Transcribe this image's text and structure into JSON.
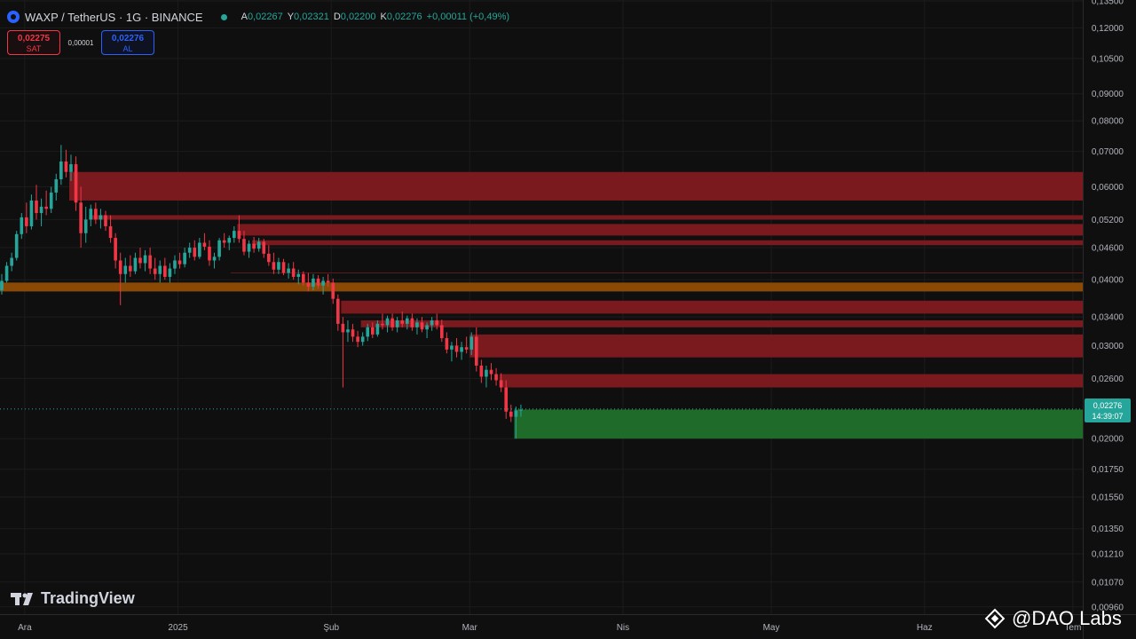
{
  "header": {
    "title": "WAXP / TetherUS · 1G · BINANCE",
    "ohlc": [
      {
        "k": "A",
        "v": "0,02267"
      },
      {
        "k": "Y",
        "v": "0,02321"
      },
      {
        "k": "D",
        "v": "0,02200"
      },
      {
        "k": "K",
        "v": "0,02276"
      }
    ],
    "change": "+0,00011 (+0,49%)"
  },
  "trade": {
    "sell_price": "0,02275",
    "sell_label": "SAT",
    "spread": "0,00001",
    "buy_price": "0,02276",
    "buy_label": "AL"
  },
  "last_price": {
    "price": "0,02276",
    "countdown": "14:39:07"
  },
  "brand": {
    "name": "TradingView"
  },
  "watermark": {
    "text": "@DAO Labs"
  },
  "colors": {
    "background": "#0f0f0f",
    "up": "#26a69a",
    "down": "#f23645",
    "resistance_zone": "#7a1a1f",
    "support_zone": "#1f6b2a",
    "orange_zone": "#8a4a06"
  },
  "chart_data": {
    "type": "candlestick",
    "price_scale": "log",
    "ylim": [
      0.0093,
      0.1355
    ],
    "xlim": [
      "2024-11-26",
      "2025-07-03"
    ],
    "y_ticks": [
      "0,13500",
      "0,12000",
      "0,10500",
      "0,09000",
      "0,08000",
      "0,07000",
      "0,06000",
      "0,05200",
      "0,04600",
      "0,04000",
      "0,03400",
      "0,03000",
      "0,02600",
      "0,02000",
      "0,01750",
      "0,01550",
      "0,01350",
      "0,01210",
      "0,01070",
      "0,00960"
    ],
    "x_ticks": [
      {
        "label": "Ara",
        "date": "2024-12-01"
      },
      {
        "label": "2025",
        "date": "2025-01-01"
      },
      {
        "label": "Şub",
        "date": "2025-02-01"
      },
      {
        "label": "Mar",
        "date": "2025-03-01"
      },
      {
        "label": "Nis",
        "date": "2025-04-01"
      },
      {
        "label": "May",
        "date": "2025-05-01"
      },
      {
        "label": "Haz",
        "date": "2025-06-01"
      },
      {
        "label": "Tem",
        "date": "2025-07-01"
      }
    ],
    "zones": [
      {
        "kind": "resistance",
        "start": "2024-12-10",
        "low": 0.0565,
        "high": 0.064
      },
      {
        "kind": "resistance",
        "start": "2024-12-14",
        "low": 0.052,
        "high": 0.053
      },
      {
        "kind": "resistance",
        "start": "2025-01-13",
        "low": 0.0485,
        "high": 0.051
      },
      {
        "kind": "resistance",
        "start": "2025-01-16",
        "low": 0.0465,
        "high": 0.0475
      },
      {
        "kind": "orange",
        "start": "2024-11-26",
        "low": 0.038,
        "high": 0.0395
      },
      {
        "kind": "resistance",
        "start": "2025-02-03",
        "low": 0.0345,
        "high": 0.0365
      },
      {
        "kind": "resistance",
        "start": "2025-02-07",
        "low": 0.0325,
        "high": 0.0335
      },
      {
        "kind": "resistance",
        "start": "2025-03-01",
        "low": 0.0285,
        "high": 0.0315
      },
      {
        "kind": "resistance",
        "start": "2025-03-07",
        "low": 0.025,
        "high": 0.0265
      },
      {
        "kind": "support",
        "start": "2025-03-10",
        "low": 0.02,
        "high": 0.0227
      }
    ],
    "candles": [
      [
        "2024-11-26",
        0.0382,
        0.041,
        0.0375,
        0.0398
      ],
      [
        "2024-11-27",
        0.0398,
        0.0432,
        0.0395,
        0.0425
      ],
      [
        "2024-11-28",
        0.0425,
        0.045,
        0.0415,
        0.044
      ],
      [
        "2024-11-29",
        0.044,
        0.0495,
        0.0435,
        0.0488
      ],
      [
        "2024-11-30",
        0.0488,
        0.0535,
        0.0478,
        0.0525
      ],
      [
        "2024-12-01",
        0.0525,
        0.056,
        0.049,
        0.0505
      ],
      [
        "2024-12-02",
        0.0505,
        0.058,
        0.0498,
        0.0565
      ],
      [
        "2024-12-03",
        0.0565,
        0.0605,
        0.052,
        0.0535
      ],
      [
        "2024-12-04",
        0.0535,
        0.057,
        0.0505,
        0.055
      ],
      [
        "2024-12-05",
        0.055,
        0.059,
        0.053,
        0.0545
      ],
      [
        "2024-12-06",
        0.0545,
        0.06,
        0.0535,
        0.0585
      ],
      [
        "2024-12-07",
        0.0585,
        0.0635,
        0.0565,
        0.062
      ],
      [
        "2024-12-08",
        0.062,
        0.072,
        0.0605,
        0.067
      ],
      [
        "2024-12-09",
        0.067,
        0.0705,
        0.0625,
        0.064
      ],
      [
        "2024-12-10",
        0.064,
        0.069,
        0.0615,
        0.0662
      ],
      [
        "2024-12-11",
        0.0662,
        0.0685,
        0.054,
        0.056
      ],
      [
        "2024-12-12",
        0.056,
        0.06,
        0.046,
        0.049
      ],
      [
        "2024-12-13",
        0.049,
        0.055,
        0.047,
        0.052
      ],
      [
        "2024-12-14",
        0.052,
        0.0555,
        0.0505,
        0.0545
      ],
      [
        "2024-12-15",
        0.0545,
        0.056,
        0.051,
        0.052
      ],
      [
        "2024-12-16",
        0.052,
        0.0545,
        0.05,
        0.053
      ],
      [
        "2024-12-17",
        0.053,
        0.054,
        0.0495,
        0.0505
      ],
      [
        "2024-12-18",
        0.0505,
        0.053,
        0.047,
        0.048
      ],
      [
        "2024-12-19",
        0.048,
        0.049,
        0.042,
        0.0435
      ],
      [
        "2024-12-20",
        0.0435,
        0.045,
        0.0358,
        0.041
      ],
      [
        "2024-12-21",
        0.041,
        0.044,
        0.0395,
        0.0425
      ],
      [
        "2024-12-22",
        0.0425,
        0.0445,
        0.0405,
        0.0415
      ],
      [
        "2024-12-23",
        0.0415,
        0.045,
        0.041,
        0.044
      ],
      [
        "2024-12-24",
        0.044,
        0.046,
        0.042,
        0.043
      ],
      [
        "2024-12-25",
        0.043,
        0.0455,
        0.0415,
        0.0445
      ],
      [
        "2024-12-26",
        0.0445,
        0.046,
        0.041,
        0.042
      ],
      [
        "2024-12-27",
        0.042,
        0.044,
        0.04,
        0.041
      ],
      [
        "2024-12-28",
        0.041,
        0.0435,
        0.0395,
        0.0425
      ],
      [
        "2024-12-29",
        0.0425,
        0.044,
        0.04,
        0.0405
      ],
      [
        "2024-12-30",
        0.0405,
        0.043,
        0.0395,
        0.042
      ],
      [
        "2024-12-31",
        0.042,
        0.0445,
        0.041,
        0.0435
      ],
      [
        "2025-01-01",
        0.0435,
        0.045,
        0.042,
        0.0428
      ],
      [
        "2025-01-02",
        0.0428,
        0.046,
        0.0422,
        0.045
      ],
      [
        "2025-01-03",
        0.045,
        0.047,
        0.044,
        0.046
      ],
      [
        "2025-01-04",
        0.046,
        0.0475,
        0.0435,
        0.0442
      ],
      [
        "2025-01-05",
        0.0442,
        0.048,
        0.0438,
        0.047
      ],
      [
        "2025-01-06",
        0.047,
        0.049,
        0.0455,
        0.0462
      ],
      [
        "2025-01-07",
        0.0462,
        0.0475,
        0.0425,
        0.0435
      ],
      [
        "2025-01-08",
        0.0435,
        0.045,
        0.042,
        0.0442
      ],
      [
        "2025-01-09",
        0.0442,
        0.048,
        0.0435,
        0.0475
      ],
      [
        "2025-01-10",
        0.0475,
        0.049,
        0.046,
        0.047
      ],
      [
        "2025-01-11",
        0.047,
        0.0485,
        0.0455,
        0.048
      ],
      [
        "2025-01-12",
        0.048,
        0.0505,
        0.047,
        0.0495
      ],
      [
        "2025-01-13",
        0.0495,
        0.053,
        0.047,
        0.0478
      ],
      [
        "2025-01-14",
        0.0478,
        0.0495,
        0.0445,
        0.0452
      ],
      [
        "2025-01-15",
        0.0452,
        0.0475,
        0.044,
        0.0468
      ],
      [
        "2025-01-16",
        0.0468,
        0.0482,
        0.045,
        0.0458
      ],
      [
        "2025-01-17",
        0.0458,
        0.048,
        0.0452,
        0.0472
      ],
      [
        "2025-01-18",
        0.0472,
        0.0478,
        0.044,
        0.0448
      ],
      [
        "2025-01-19",
        0.0448,
        0.0465,
        0.0425,
        0.0432
      ],
      [
        "2025-01-20",
        0.0432,
        0.045,
        0.041,
        0.0418
      ],
      [
        "2025-01-21",
        0.0418,
        0.044,
        0.041,
        0.0432
      ],
      [
        "2025-01-22",
        0.0432,
        0.0438,
        0.0408,
        0.0412
      ],
      [
        "2025-01-23",
        0.0412,
        0.043,
        0.0402,
        0.042
      ],
      [
        "2025-01-24",
        0.042,
        0.0432,
        0.04,
        0.0405
      ],
      [
        "2025-01-25",
        0.0405,
        0.0418,
        0.0392,
        0.041
      ],
      [
        "2025-01-26",
        0.041,
        0.0415,
        0.039,
        0.0395
      ],
      [
        "2025-01-27",
        0.0395,
        0.0412,
        0.038,
        0.0388
      ],
      [
        "2025-01-28",
        0.0388,
        0.041,
        0.0382,
        0.0402
      ],
      [
        "2025-01-29",
        0.0402,
        0.0408,
        0.0385,
        0.039
      ],
      [
        "2025-01-30",
        0.039,
        0.0405,
        0.0375,
        0.0398
      ],
      [
        "2025-01-31",
        0.0398,
        0.041,
        0.0388,
        0.0395
      ],
      [
        "2025-02-01",
        0.0395,
        0.0402,
        0.036,
        0.0368
      ],
      [
        "2025-02-02",
        0.0368,
        0.0375,
        0.032,
        0.033
      ],
      [
        "2025-02-03",
        0.033,
        0.034,
        0.025,
        0.0318
      ],
      [
        "2025-02-04",
        0.0318,
        0.0335,
        0.0305,
        0.0322
      ],
      [
        "2025-02-05",
        0.0322,
        0.033,
        0.0305,
        0.0312
      ],
      [
        "2025-02-06",
        0.0312,
        0.032,
        0.0298,
        0.0305
      ],
      [
        "2025-02-07",
        0.0305,
        0.0318,
        0.03,
        0.0312
      ],
      [
        "2025-02-08",
        0.0312,
        0.033,
        0.0306,
        0.0325
      ],
      [
        "2025-02-09",
        0.0325,
        0.0332,
        0.031,
        0.0315
      ],
      [
        "2025-02-10",
        0.0315,
        0.0335,
        0.0312,
        0.033
      ],
      [
        "2025-02-11",
        0.033,
        0.0345,
        0.0322,
        0.0328
      ],
      [
        "2025-02-12",
        0.0328,
        0.0342,
        0.0318,
        0.0338
      ],
      [
        "2025-02-13",
        0.0338,
        0.0345,
        0.032,
        0.0325
      ],
      [
        "2025-02-14",
        0.0325,
        0.034,
        0.0318,
        0.0335
      ],
      [
        "2025-02-15",
        0.0335,
        0.0348,
        0.0325,
        0.033
      ],
      [
        "2025-02-16",
        0.033,
        0.0342,
        0.0322,
        0.0338
      ],
      [
        "2025-02-17",
        0.0338,
        0.0345,
        0.032,
        0.0325
      ],
      [
        "2025-02-18",
        0.0325,
        0.0338,
        0.0315,
        0.0332
      ],
      [
        "2025-02-19",
        0.0332,
        0.034,
        0.0318,
        0.0322
      ],
      [
        "2025-02-20",
        0.0322,
        0.0332,
        0.031,
        0.0328
      ],
      [
        "2025-02-21",
        0.0328,
        0.034,
        0.032,
        0.0335
      ],
      [
        "2025-02-22",
        0.0335,
        0.0345,
        0.0322,
        0.0328
      ],
      [
        "2025-02-23",
        0.0328,
        0.0336,
        0.0305,
        0.031
      ],
      [
        "2025-02-24",
        0.031,
        0.0318,
        0.029,
        0.0295
      ],
      [
        "2025-02-25",
        0.0295,
        0.0305,
        0.028,
        0.03
      ],
      [
        "2025-02-26",
        0.03,
        0.031,
        0.0285,
        0.0292
      ],
      [
        "2025-02-27",
        0.0292,
        0.0305,
        0.0282,
        0.0298
      ],
      [
        "2025-02-28",
        0.0298,
        0.0312,
        0.029,
        0.0295
      ],
      [
        "2025-03-01",
        0.0295,
        0.0318,
        0.0288,
        0.0312
      ],
      [
        "2025-03-02",
        0.0312,
        0.0325,
        0.0268,
        0.0275
      ],
      [
        "2025-03-03",
        0.0275,
        0.0282,
        0.0255,
        0.0262
      ],
      [
        "2025-03-04",
        0.0262,
        0.0275,
        0.025,
        0.027
      ],
      [
        "2025-03-05",
        0.027,
        0.0278,
        0.0258,
        0.0265
      ],
      [
        "2025-03-06",
        0.0265,
        0.0272,
        0.0252,
        0.0258
      ],
      [
        "2025-03-07",
        0.0258,
        0.0266,
        0.0245,
        0.025
      ],
      [
        "2025-03-08",
        0.025,
        0.0258,
        0.0218,
        0.0225
      ],
      [
        "2025-03-09",
        0.0225,
        0.0232,
        0.0215,
        0.022
      ],
      [
        "2025-03-10",
        0.022,
        0.023,
        0.02,
        0.0226
      ],
      [
        "2025-03-11",
        0.0226,
        0.0232,
        0.022,
        0.0227
      ]
    ]
  }
}
